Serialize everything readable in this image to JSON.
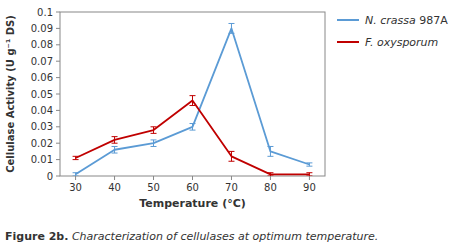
{
  "chart_data": {
    "type": "line",
    "xlabel": "Temperature (°C)",
    "ylabel": "Cellulase Activity (U g⁻¹ DS)",
    "x": [
      30,
      40,
      50,
      60,
      70,
      80,
      90
    ],
    "series": [
      {
        "name": "N. crassa 987A",
        "color": "#5B9BD5",
        "values": [
          0.001,
          0.016,
          0.02,
          0.03,
          0.09,
          0.015,
          0.007
        ],
        "errors": [
          0.001,
          0.002,
          0.002,
          0.002,
          0.003,
          0.003,
          0.001
        ]
      },
      {
        "name": "F. oxysporum",
        "color": "#C00000",
        "values": [
          0.011,
          0.022,
          0.028,
          0.046,
          0.012,
          0.001,
          0.001
        ],
        "errors": [
          0.001,
          0.002,
          0.002,
          0.003,
          0.003,
          0.001,
          0.001
        ]
      }
    ],
    "xlim": [
      26,
      94
    ],
    "ylim": [
      0,
      0.1
    ],
    "xticks": [
      30,
      40,
      50,
      60,
      70,
      80,
      90
    ],
    "yticks": [
      0,
      0.01,
      0.02,
      0.03,
      0.04,
      0.05,
      0.06,
      0.07,
      0.08,
      0.09,
      0.1
    ],
    "grid": false,
    "legend": "right",
    "annotations": [
      "Figure 2b.",
      "Characterization of cellulases at optimum temperature."
    ]
  }
}
